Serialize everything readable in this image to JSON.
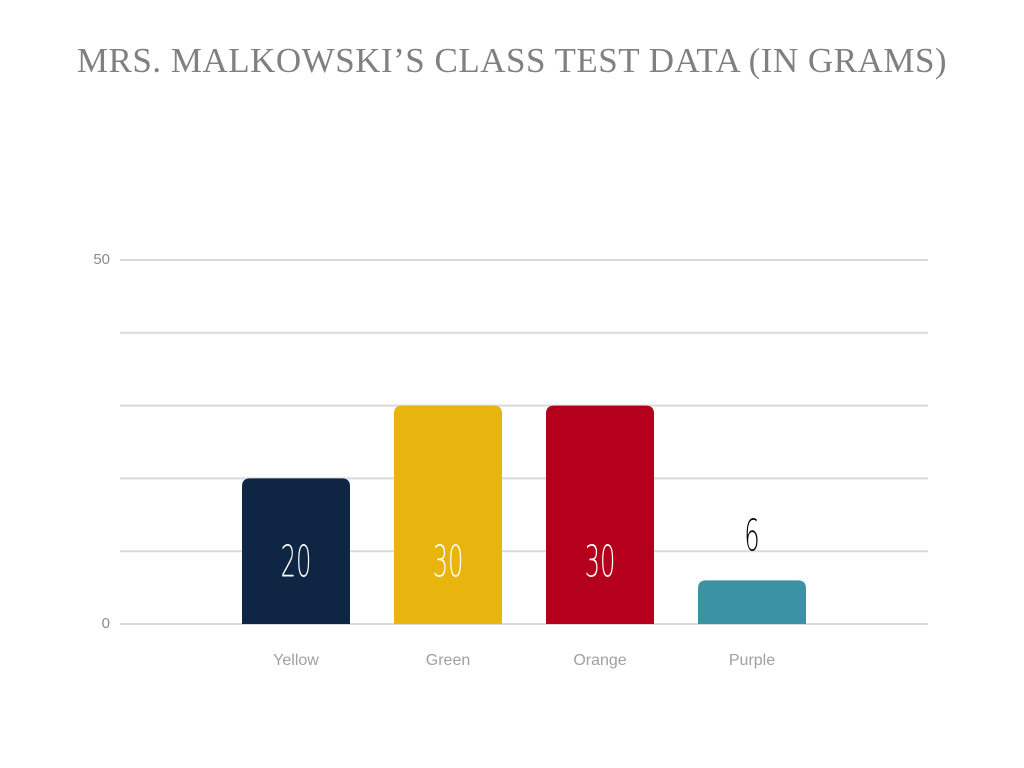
{
  "chart_data": {
    "type": "bar",
    "title": "MRS. MALKOWSKI’S CLASS TEST DATA (IN GRAMS)",
    "categories": [
      "Yellow",
      "Green",
      "Orange",
      "Purple"
    ],
    "values": [
      20,
      30,
      30,
      6
    ],
    "colors": [
      "#0e2644",
      "#e8b40e",
      "#b5001c",
      "#3c92a5"
    ],
    "label_colors": [
      "#ffffff",
      "#ffffff",
      "#ffffff",
      "#000000"
    ],
    "ylim": [
      0,
      50
    ],
    "yticks": [
      0,
      50
    ],
    "ygrid": [
      0,
      10,
      20,
      30,
      40,
      50
    ],
    "grid": true
  }
}
